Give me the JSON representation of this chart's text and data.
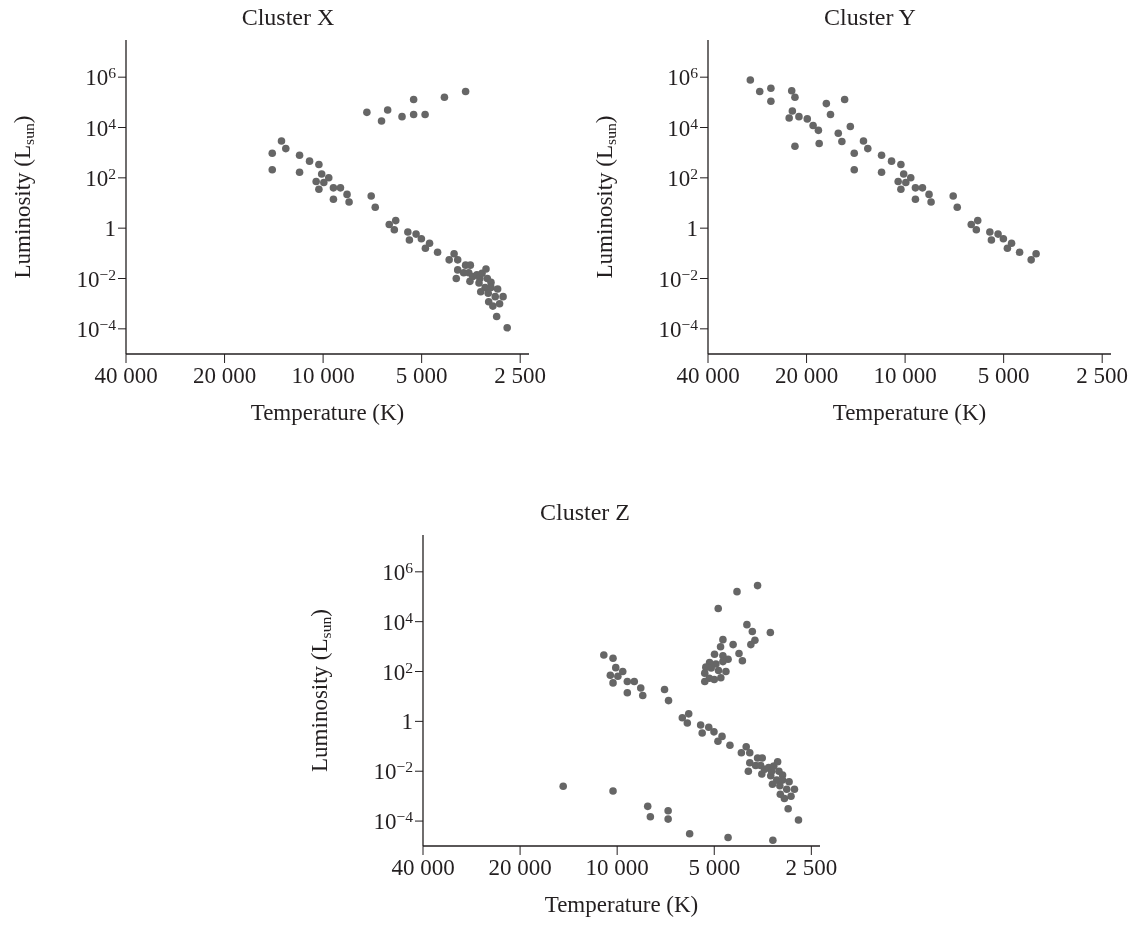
{
  "chart_data": [
    {
      "type": "scatter",
      "title": "Cluster X",
      "xlabel": "Temperature (K)",
      "ylabel": "Luminosity (L$_{sun}$)",
      "color": "#666666",
      "marker": "circle",
      "log": "xy",
      "x": [
        7350,
        6630,
        6350,
        5740,
        5290,
        5290,
        4880,
        4260,
        3670,
        14300,
        14300,
        13400,
        13000,
        11800,
        11800,
        11000,
        10300,
        10100,
        10500,
        9950,
        10300,
        9610,
        9300,
        8850,
        9300,
        8450,
        8330,
        7130,
        6930,
        6280,
        6000,
        6060,
        5510,
        5450,
        5200,
        5010,
        4870,
        4730,
        4470,
        4120,
        3980,
        3880,
        3880,
        3920,
        3720,
        3670,
        3590,
        3550,
        3560,
        3490,
        3390,
        3340,
        3320,
        3270,
        3180,
        3150,
        3070,
        3200,
        3300,
        3070,
        3130,
        2930,
        2980,
        2820,
        3120,
        3030,
        2890,
        2950,
        2740
      ],
      "values": [
        40000,
        18000,
        50000,
        27000,
        33000,
        130000,
        33000,
        160000,
        270000,
        950,
        210,
        2900,
        1450,
        790,
        167,
        460,
        340,
        143,
        71,
        65,
        35,
        100,
        40,
        40,
        14,
        22,
        11,
        19,
        6.8,
        1.4,
        2.0,
        0.86,
        0.71,
        0.34,
        0.58,
        0.38,
        0.16,
        0.25,
        0.11,
        0.055,
        0.096,
        0.055,
        0.022,
        0.01,
        0.017,
        0.034,
        0.017,
        0.034,
        0.0077,
        0.012,
        0.014,
        0.0066,
        0.01,
        0.016,
        0.024,
        0.01,
        0.007,
        0.0044,
        0.003,
        0.0044,
        0.0026,
        0.0038,
        0.0019,
        0.0019,
        0.0012,
        0.0008,
        0.00099,
        0.00031,
        0.00011
      ],
      "xlim": [
        40000,
        2350
      ],
      "ylim": [
        1e-05,
        30000000
      ],
      "xticks": [
        {
          "value": 40000,
          "label": "40 000"
        },
        {
          "value": 20000,
          "label": "20 000"
        },
        {
          "value": 10000,
          "label": "10 000"
        },
        {
          "value": 5000,
          "label": "5 000"
        },
        {
          "value": 2500,
          "label": "2 500"
        }
      ],
      "yticks": [
        {
          "value": 0.0001,
          "label": "10$^{−4}$"
        },
        {
          "value": 0.01,
          "label": "10$^{−2}$"
        },
        {
          "value": 1,
          "label": "1"
        },
        {
          "value": 100,
          "label": "10$^{2}$"
        },
        {
          "value": 10000,
          "label": "10$^{4}$"
        },
        {
          "value": 1000000,
          "label": "10$^{6}$"
        }
      ]
    },
    {
      "type": "scatter",
      "title": "Cluster Y",
      "xlabel": "Temperature (K)",
      "ylabel": "Luminosity (L$_{sun}$)",
      "color": "#666666",
      "marker": "circle",
      "log": "xy",
      "x": [
        29700,
        27800,
        25700,
        25700,
        22200,
        21700,
        22100,
        22600,
        21100,
        19900,
        21700,
        19100,
        18400,
        18300,
        17400,
        16900,
        16000,
        15600,
        15300,
        14700,
        14300,
        14300,
        13400,
        13000,
        11800,
        11800,
        11000,
        10300,
        10100,
        10500,
        9950,
        10300,
        9610,
        9300,
        8850,
        9300,
        8450,
        8330,
        7130,
        6930,
        6280,
        6000,
        6060,
        5510,
        5450,
        5200,
        5010,
        4870,
        4730,
        4470,
        4120,
        3980
      ],
      "values": [
        770000,
        270000,
        360000,
        110000,
        290000,
        160000,
        45000,
        24000,
        27000,
        22000,
        1800,
        12000,
        7700,
        2300,
        89000,
        33000,
        5900,
        2800,
        130000,
        11000,
        950,
        210,
        2900,
        1450,
        790,
        167,
        460,
        340,
        143,
        71,
        65,
        35,
        100,
        40,
        40,
        14,
        22,
        11,
        19,
        6.8,
        1.4,
        2.0,
        0.86,
        0.71,
        0.34,
        0.58,
        0.38,
        0.16,
        0.25,
        0.11,
        0.055,
        0.096
      ],
      "xlim": [
        40000,
        2350
      ],
      "ylim": [
        1e-05,
        30000000
      ],
      "xticks": [
        {
          "value": 40000,
          "label": "40 000"
        },
        {
          "value": 20000,
          "label": "20 000"
        },
        {
          "value": 10000,
          "label": "10 000"
        },
        {
          "value": 5000,
          "label": "5 000"
        },
        {
          "value": 2500,
          "label": "2 500"
        }
      ],
      "yticks": [
        {
          "value": 0.0001,
          "label": "10$^{−4}$"
        },
        {
          "value": 0.01,
          "label": "10$^{−2}$"
        },
        {
          "value": 1,
          "label": "1"
        },
        {
          "value": 100,
          "label": "10$^{2}$"
        },
        {
          "value": 10000,
          "label": "10$^{4}$"
        },
        {
          "value": 1000000,
          "label": "10$^{6}$"
        }
      ]
    },
    {
      "type": "scatter",
      "title": "Cluster Z",
      "xlabel": "Temperature (K)",
      "ylabel": "Luminosity (L$_{sun}$)",
      "color": "#666666",
      "marker": "circle",
      "log": "xy",
      "x": [
        4860,
        4250,
        3670,
        3960,
        3810,
        3350,
        4700,
        4370,
        3850,
        3740,
        4780,
        4990,
        4700,
        4190,
        4530,
        4700,
        4090,
        4940,
        5170,
        5310,
        5110,
        5350,
        4850,
        4600,
        5180,
        5000,
        4770,
        5350,
        14700,
        10300,
        8040,
        7890,
        6950,
        6950,
        5960,
        4530,
        3290,
        11000,
        10300,
        10100,
        10500,
        9950,
        10300,
        9610,
        9300,
        8850,
        9300,
        8450,
        8330,
        7130,
        6930,
        6280,
        6000,
        6060,
        5510,
        5450,
        5200,
        5010,
        4870,
        4730,
        4470,
        4120,
        3980,
        3880,
        3880,
        3920,
        3720,
        3670,
        3590,
        3550,
        3560,
        3490,
        3390,
        3340,
        3320,
        3270,
        3180,
        3150,
        3070,
        3200,
        3300,
        3070,
        3130,
        2930,
        2980,
        2820,
        3120,
        3030,
        2890,
        2950,
        2740
      ],
      "values": [
        34000,
        160000,
        280000,
        7600,
        4000,
        3700,
        1900,
        1200,
        1200,
        1800,
        980,
        490,
        430,
        530,
        310,
        250,
        270,
        200,
        230,
        150,
        140,
        86,
        110,
        100,
        54,
        48,
        56,
        40,
        0.0025,
        0.0016,
        0.00039,
        0.00015,
        0.00026,
        0.00012,
        3.1e-05,
        2.2e-05,
        1.7e-05,
        460,
        340,
        143,
        71,
        65,
        35,
        100,
        40,
        40,
        14,
        22,
        11,
        19,
        6.8,
        1.4,
        2.0,
        0.86,
        0.71,
        0.34,
        0.58,
        0.38,
        0.16,
        0.25,
        0.11,
        0.055,
        0.096,
        0.055,
        0.022,
        0.01,
        0.017,
        0.034,
        0.017,
        0.034,
        0.0077,
        0.012,
        0.014,
        0.0066,
        0.01,
        0.016,
        0.024,
        0.01,
        0.007,
        0.0044,
        0.003,
        0.0044,
        0.0026,
        0.0038,
        0.0019,
        0.0019,
        0.0012,
        0.0008,
        0.00099,
        0.00031,
        0.00011
      ],
      "xlim": [
        40000,
        2350
      ],
      "ylim": [
        1e-05,
        30000000
      ],
      "xticks": [
        {
          "value": 40000,
          "label": "40 000"
        },
        {
          "value": 20000,
          "label": "20 000"
        },
        {
          "value": 10000,
          "label": "10 000"
        },
        {
          "value": 5000,
          "label": "5 000"
        },
        {
          "value": 2500,
          "label": "2 500"
        }
      ],
      "yticks": [
        {
          "value": 0.0001,
          "label": "10$^{−4}$"
        },
        {
          "value": 0.01,
          "label": "10$^{−2}$"
        },
        {
          "value": 1,
          "label": "1"
        },
        {
          "value": 100,
          "label": "10$^{2}$"
        },
        {
          "value": 10000,
          "label": "10$^{4}$"
        },
        {
          "value": 1000000,
          "label": "10$^{6}$"
        }
      ]
    }
  ]
}
